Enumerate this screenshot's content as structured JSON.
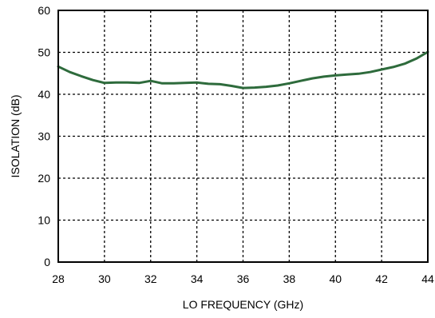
{
  "chart_data": {
    "type": "line",
    "xlabel": "LO FREQUENCY (GHz)",
    "ylabel": "ISOLATION  (dB)",
    "xlim": [
      28,
      44
    ],
    "ylim": [
      0,
      60
    ],
    "xticks": [
      28,
      30,
      32,
      34,
      36,
      38,
      40,
      42,
      44
    ],
    "yticks": [
      0,
      10,
      20,
      30,
      40,
      50,
      60
    ],
    "xtick_labels": [
      "28",
      "30",
      "32",
      "34",
      "36",
      "38",
      "40",
      "42",
      "44"
    ],
    "ytick_labels": [
      "0",
      "10",
      "20",
      "30",
      "40",
      "50",
      "60"
    ],
    "grid": true,
    "series": [
      {
        "color": "#2e6b3c",
        "x": [
          28,
          28.5,
          29,
          29.5,
          30,
          30.5,
          31,
          31.5,
          32,
          32.5,
          33,
          33.5,
          34,
          34.5,
          35,
          35.5,
          36,
          36.5,
          37,
          37.5,
          38,
          38.5,
          39,
          39.5,
          40,
          40.5,
          41,
          41.5,
          42,
          42.5,
          43,
          43.5,
          44
        ],
        "y": [
          46.6,
          45.3,
          44.3,
          43.4,
          42.7,
          42.8,
          42.8,
          42.7,
          43.2,
          42.6,
          42.6,
          42.7,
          42.8,
          42.5,
          42.4,
          42.0,
          41.5,
          41.6,
          41.8,
          42.1,
          42.6,
          43.2,
          43.8,
          44.2,
          44.5,
          44.7,
          44.9,
          45.3,
          45.9,
          46.5,
          47.3,
          48.5,
          50.1
        ]
      }
    ]
  }
}
